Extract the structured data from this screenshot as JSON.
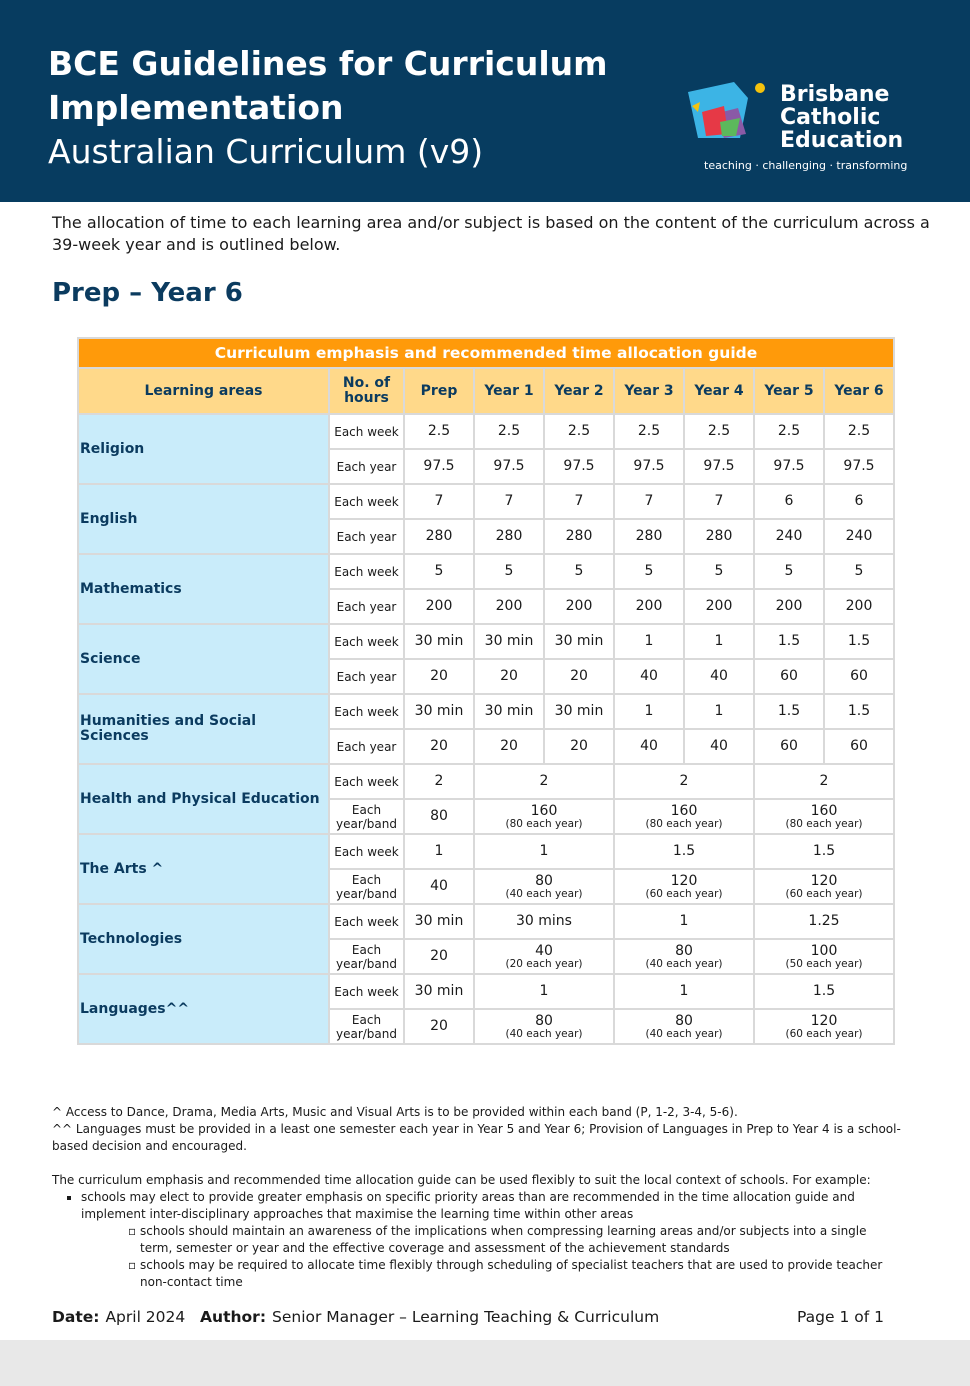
{
  "header": {
    "title": "BCE Guidelines for Curriculum Implementation",
    "subtitle": "Australian Curriculum (v9)",
    "logo_name": [
      "Brisbane",
      "Catholic",
      "Education"
    ],
    "tagline": "teaching · challenging · transforming"
  },
  "intro": "The allocation of time to each learning area and/or subject is based on the content of the curriculum across a 39-week year and is outlined below.",
  "section_title": "Prep – Year 6",
  "table": {
    "title": "Curriculum emphasis and recommended time allocation guide",
    "headers": [
      "Learning areas",
      "No. of hours",
      "Prep",
      "Year 1",
      "Year 2",
      "Year 3",
      "Year 4",
      "Year 5",
      "Year 6"
    ],
    "areas": [
      {
        "area": "Religion",
        "rows": [
          {
            "unit": "Each week",
            "cells": [
              "2.5",
              "2.5",
              "2.5",
              "2.5",
              "2.5",
              "2.5",
              "2.5"
            ]
          },
          {
            "unit": "Each year",
            "cells": [
              "97.5",
              "97.5",
              "97.5",
              "97.5",
              "97.5",
              "97.5",
              "97.5"
            ]
          }
        ]
      },
      {
        "area": "English",
        "rows": [
          {
            "unit": "Each week",
            "cells": [
              "7",
              "7",
              "7",
              "7",
              "7",
              "6",
              "6"
            ]
          },
          {
            "unit": "Each year",
            "cells": [
              "280",
              "280",
              "280",
              "280",
              "280",
              "240",
              "240"
            ]
          }
        ]
      },
      {
        "area": "Mathematics",
        "rows": [
          {
            "unit": "Each week",
            "cells": [
              "5",
              "5",
              "5",
              "5",
              "5",
              "5",
              "5"
            ]
          },
          {
            "unit": "Each year",
            "cells": [
              "200",
              "200",
              "200",
              "200",
              "200",
              "200",
              "200"
            ]
          }
        ]
      },
      {
        "area": "Science",
        "rows": [
          {
            "unit": "Each week",
            "cells": [
              "30 min",
              "30 min",
              "30 min",
              "1",
              "1",
              "1.5",
              "1.5"
            ]
          },
          {
            "unit": "Each year",
            "cells": [
              "20",
              "20",
              "20",
              "40",
              "40",
              "60",
              "60"
            ]
          }
        ]
      },
      {
        "area": "Humanities and Social Sciences",
        "rows": [
          {
            "unit": "Each week",
            "cells": [
              "30 min",
              "30 min",
              "30 min",
              "1",
              "1",
              "1.5",
              "1.5"
            ]
          },
          {
            "unit": "Each year",
            "cells": [
              "20",
              "20",
              "20",
              "40",
              "40",
              "60",
              "60"
            ]
          }
        ]
      },
      {
        "area": "Health and Physical Education",
        "rows": [
          {
            "unit": "Each week",
            "cells": [
              "2",
              "2",
              "2",
              "2"
            ]
          },
          {
            "unit": "Each year/band",
            "cells": [
              "80",
              {
                "text": "160",
                "note": "(80 each year)"
              },
              {
                "text": "160",
                "note": "(80 each year)"
              },
              {
                "text": "160",
                "note": "(80 each year)"
              }
            ]
          }
        ]
      },
      {
        "area": "The Arts ^",
        "rows": [
          {
            "unit": "Each week",
            "cells": [
              "1",
              "1",
              "1.5",
              "1.5"
            ]
          },
          {
            "unit": "Each year/band",
            "cells": [
              "40",
              {
                "text": "80",
                "note": "(40 each year)"
              },
              {
                "text": "120",
                "note": "(60 each year)"
              },
              {
                "text": "120",
                "note": "(60 each year)"
              }
            ]
          }
        ]
      },
      {
        "area": "Technologies",
        "rows": [
          {
            "unit": "Each week",
            "cells": [
              "30 min",
              "30 mins",
              "1",
              "1.25"
            ]
          },
          {
            "unit": "Each year/band",
            "cells": [
              "20",
              {
                "text": "40",
                "note": "(20 each year)"
              },
              {
                "text": "80",
                "note": "(40 each year)"
              },
              {
                "text": "100",
                "note": "(50 each year)"
              }
            ]
          }
        ]
      },
      {
        "area": "Languages^^",
        "rows": [
          {
            "unit": "Each week",
            "cells": [
              "30 min",
              "1",
              "1",
              "1.5"
            ]
          },
          {
            "unit": "Each year/band",
            "cells": [
              "20",
              {
                "text": "80",
                "note": "(40 each year)"
              },
              {
                "text": "80",
                "note": "(40 each year)"
              },
              {
                "text": "120",
                "note": "(60 each year)"
              }
            ]
          }
        ]
      }
    ]
  },
  "footnotes": [
    "^ Access to Dance, Drama, Media Arts, Music and Visual Arts is to be provided within each band (P, 1-2, 3-4, 5-6).",
    "^^ Languages must be provided in a least one semester each year in Year 5 and Year 6; Provision of Languages in Prep to Year 4 is a school-based decision and encouraged."
  ],
  "flex_note": "The curriculum emphasis and recommended time allocation guide can be used flexibly to suit the local context of schools. For example:",
  "bullets": [
    {
      "text": "schools may elect to provide greater emphasis on specific priority areas than are recommended in the time allocation guide and implement inter-disciplinary approaches that maximise the learning time within other areas",
      "sub": [
        "schools should maintain an awareness of the implications when compressing learning areas and/or subjects into a single term, semester or year and the effective coverage and assessment of the achievement standards",
        "schools may be required to allocate time flexibly through scheduling of specialist teachers that are used to provide teacher non-contact time"
      ]
    }
  ],
  "footer": {
    "date_label": "Date:",
    "date": "April 2024",
    "author_label": "Author:",
    "author": "Senior Manager – Learning Teaching & Curriculum",
    "page": "Page 1 of 1"
  }
}
